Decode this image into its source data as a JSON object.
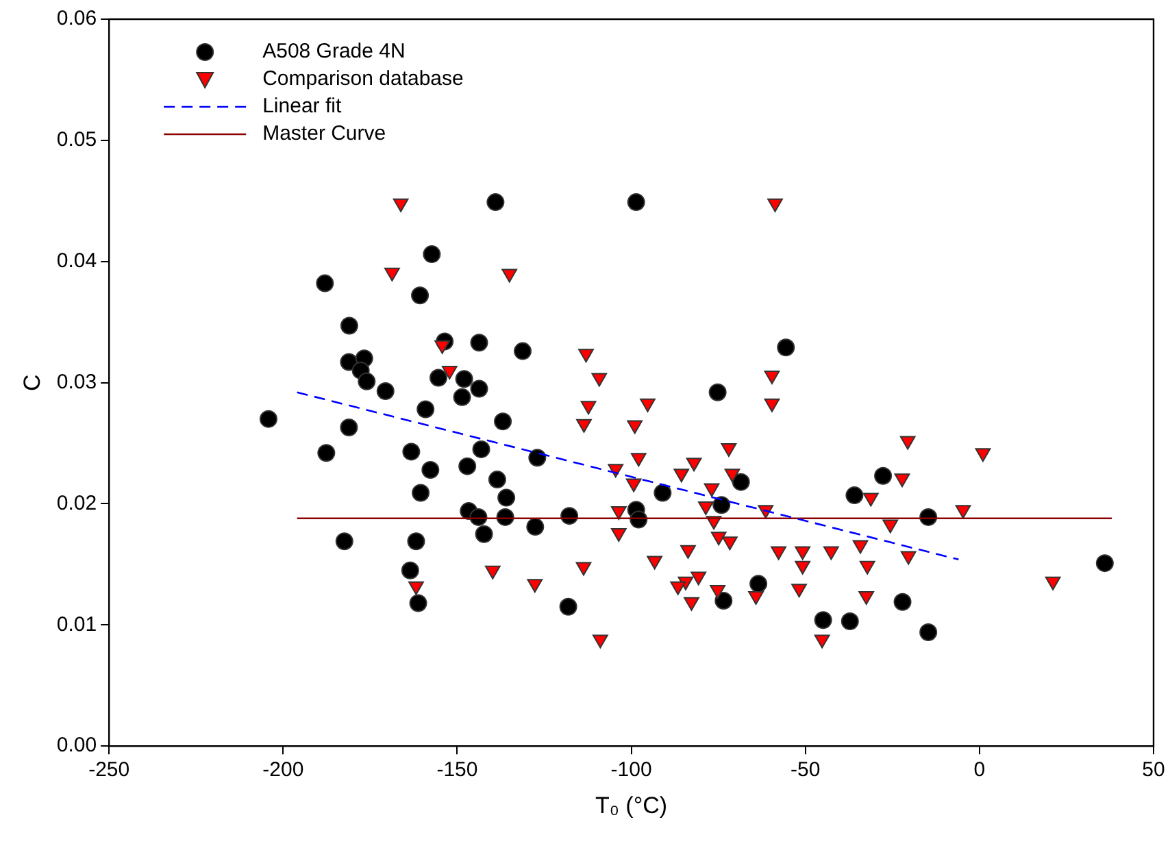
{
  "chart_data": {
    "type": "scatter",
    "xlabel": "T₀ (°C)",
    "ylabel": "C",
    "xlim": [
      -250,
      50
    ],
    "xticks": [
      -250,
      -200,
      -150,
      -100,
      -50,
      0,
      50
    ],
    "ylim": [
      0,
      0.06
    ],
    "yticks": [
      {
        "value": 0,
        "label": "0.00"
      },
      {
        "value": 0.01,
        "label": "0.01"
      },
      {
        "value": 0.02,
        "label": "0.02"
      },
      {
        "value": 0.03,
        "label": "0.03"
      },
      {
        "value": 0.04,
        "label": "0.04"
      },
      {
        "value": 0.05,
        "label": "0.05"
      },
      {
        "value": 0.06,
        "label": "0.06"
      }
    ],
    "grid": false,
    "legend": "top left",
    "series": [
      {
        "name": "A508 Grade 4N",
        "type": "scatter",
        "marker": "circle",
        "color": "#000000",
        "x": [
          -139,
          -157.3,
          -188,
          -160.7,
          -181,
          -153.6,
          -143.7,
          -131.2,
          -181.1,
          -176.7,
          -177.7,
          -176,
          -170.6,
          -155.4,
          -148,
          -143.7,
          -148.6,
          -159.1,
          -204.2,
          -181.1,
          -136.9,
          -187.6,
          -163.2,
          -143.1,
          -127,
          -157.7,
          -147.1,
          -138.5,
          -160.5,
          -135.9,
          -146.7,
          -143.9,
          -136.2,
          -127.6,
          -182.4,
          -161.8,
          -142.3,
          -163.5,
          -161.2,
          -98.6,
          -55.6,
          -75.2,
          -68.5,
          -91,
          -74.1,
          -98.6,
          -97.9,
          -117.8,
          -63.5,
          -73.5,
          -118.1,
          -44.9,
          -27.7,
          -35.9,
          -14.7,
          36,
          -22.1,
          -37.2,
          -14.7
        ],
        "values": [
          0.0449,
          0.0406,
          0.0382,
          0.0372,
          0.0347,
          0.0334,
          0.0333,
          0.0326,
          0.0317,
          0.032,
          0.031,
          0.0301,
          0.0293,
          0.0304,
          0.0303,
          0.0295,
          0.0288,
          0.0278,
          0.027,
          0.0263,
          0.0268,
          0.0242,
          0.0243,
          0.0245,
          0.0238,
          0.0228,
          0.0231,
          0.022,
          0.0209,
          0.0205,
          0.0194,
          0.0189,
          0.0189,
          0.0181,
          0.0169,
          0.0169,
          0.0175,
          0.0145,
          0.0118,
          0.0449,
          0.0329,
          0.0292,
          0.0218,
          0.0209,
          0.0199,
          0.0195,
          0.0187,
          0.019,
          0.0134,
          0.012,
          0.0115,
          0.0104,
          0.0223,
          0.0207,
          0.0189,
          0.0151,
          0.0119,
          0.0103,
          0.0094
        ]
      },
      {
        "name": "Comparison database",
        "type": "scatter",
        "marker": "triangle",
        "color": "#ff0000",
        "x": [
          -166.2,
          -168.7,
          -135,
          -154.3,
          -152.2,
          -139.8,
          -161.8,
          -127.7,
          -58.7,
          -113,
          -109.2,
          -59.6,
          -112.3,
          -95.3,
          -59.6,
          -113.6,
          -99,
          -72,
          -97.9,
          -82,
          -104.5,
          -85.6,
          -71,
          -99.3,
          -76.9,
          -78.6,
          -61.4,
          -103.6,
          -76.3,
          -103.6,
          -74.9,
          -71.7,
          -83.7,
          -57.7,
          -50.8,
          -42.6,
          -93.3,
          -113.7,
          -50.8,
          -80.7,
          -84.4,
          -86.6,
          -75.2,
          -51.8,
          -82.7,
          -64.2,
          -108.9,
          -45.2,
          -20.6,
          1,
          -22.2,
          -31.2,
          -4.7,
          -25.6,
          -34.2,
          -20.4,
          -32.2,
          21.1,
          -32.5
        ],
        "values": [
          0.0448,
          0.0391,
          0.039,
          0.0331,
          0.031,
          0.0145,
          0.0132,
          0.0134,
          0.0448,
          0.0324,
          0.0304,
          0.0306,
          0.0281,
          0.0283,
          0.0283,
          0.0266,
          0.0265,
          0.0246,
          0.0238,
          0.0234,
          0.0229,
          0.0225,
          0.0225,
          0.0217,
          0.0213,
          0.0198,
          0.0195,
          0.0194,
          0.0186,
          0.0176,
          0.0173,
          0.0169,
          0.0162,
          0.0161,
          0.0161,
          0.0161,
          0.0153,
          0.0148,
          0.0149,
          0.014,
          0.0136,
          0.0132,
          0.0129,
          0.013,
          0.0119,
          0.0124,
          0.0088,
          0.0088,
          0.0252,
          0.0242,
          0.0221,
          0.0205,
          0.0195,
          0.0183,
          0.0166,
          0.0157,
          0.0149,
          0.0136,
          0.0124
        ]
      },
      {
        "name": "Linear fit",
        "type": "line",
        "line_style": "dashed",
        "marker": "none",
        "color": "#0000ff",
        "x": [
          -196,
          -6
        ],
        "values": [
          0.0292,
          0.0154
        ]
      },
      {
        "name": "Master Curve",
        "type": "line",
        "line_style": "solid",
        "marker": "none",
        "color": "#8b0000",
        "x": [
          -196,
          38
        ],
        "values": [
          0.0188,
          0.0188
        ]
      }
    ]
  }
}
